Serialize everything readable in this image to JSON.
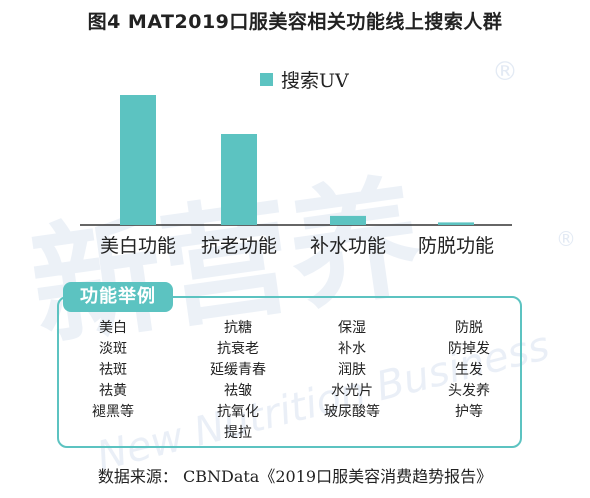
{
  "title": "图4 MAT2019口服美容相关功能线上搜索人群",
  "watermark": {
    "main": "新营养",
    "english": "New Nutrition Business",
    "mark": "®"
  },
  "colors": {
    "bar": "#5cc3c1",
    "accent": "#5cc3c1",
    "axis": "#333333"
  },
  "chart_data": {
    "type": "bar",
    "title": "图4 MAT2019口服美容相关功能线上搜索人群",
    "categories": [
      "美白功能",
      "抗老功能",
      "补水功能",
      "防脱功能"
    ],
    "series": [
      {
        "name": "搜索UV",
        "values": [
          100,
          70,
          7,
          2
        ]
      }
    ],
    "ylim": [
      0,
      100
    ],
    "grid": false,
    "legend": "top-center",
    "xlabel": "",
    "ylabel": ""
  },
  "examples": {
    "label": "功能举例",
    "columns": [
      [
        "美白",
        "淡斑",
        "祛斑",
        "祛黄",
        "褪黑等"
      ],
      [
        "抗糖",
        "抗衰老",
        "延缓青春",
        "祛皱",
        "抗氧化",
        "提拉"
      ],
      [
        "保湿",
        "补水",
        "润肤",
        "水光片",
        "玻尿酸等"
      ],
      [
        "防脱",
        "防掉发",
        "生发",
        "头发养",
        "护等"
      ]
    ]
  },
  "source": "数据来源： CBNData《2019口服美容消费趋势报告》"
}
